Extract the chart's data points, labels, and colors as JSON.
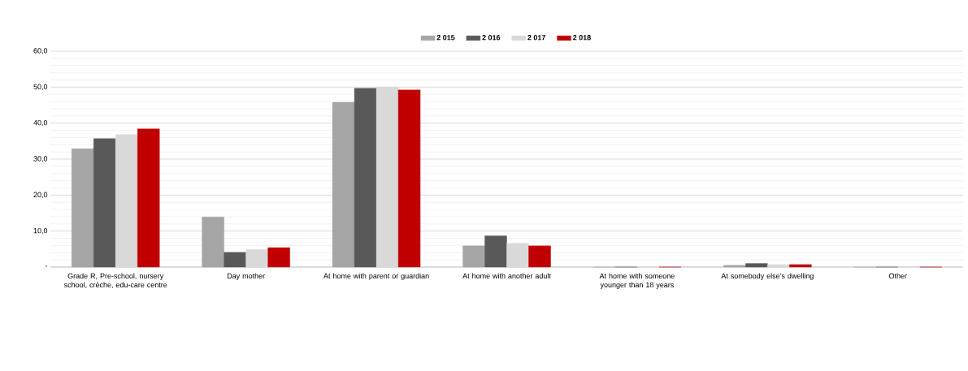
{
  "chart_data": {
    "type": "bar",
    "categories": [
      "Grade R, Pre-school, nursery school, crèche, edu-care centre",
      "Day mother",
      "At home with parent or guardian",
      "At home with another adult",
      "At home with someone younger than 18 years",
      "At somebody else’s dwelling",
      "Other"
    ],
    "series": [
      {
        "name": "2 015",
        "color": "#a5a5a5",
        "values": [
          32.9,
          13.9,
          45.8,
          5.9,
          0,
          0.5,
          0
        ]
      },
      {
        "name": "2 016",
        "color": "#595959",
        "values": [
          35.7,
          4.1,
          49.7,
          8.7,
          0,
          1.0,
          0
        ]
      },
      {
        "name": "2 017",
        "color": "#d9d9d9",
        "values": [
          36.8,
          4.9,
          50.0,
          6.6,
          0,
          0.7,
          0
        ]
      },
      {
        "name": "2 018",
        "color": "#c00000",
        "values": [
          38.4,
          5.4,
          49.2,
          5.9,
          0,
          0.7,
          0
        ]
      }
    ],
    "ylim": [
      0,
      60
    ],
    "yticks": [
      {
        "value": 0,
        "label": "-"
      },
      {
        "value": 10,
        "label": "10,0"
      },
      {
        "value": 20,
        "label": "20,0"
      },
      {
        "value": 30,
        "label": "30,0"
      },
      {
        "value": 40,
        "label": "40,0"
      },
      {
        "value": 50,
        "label": "50,0"
      },
      {
        "value": 60,
        "label": "60,0"
      }
    ],
    "grid": "y",
    "legend": "top"
  }
}
